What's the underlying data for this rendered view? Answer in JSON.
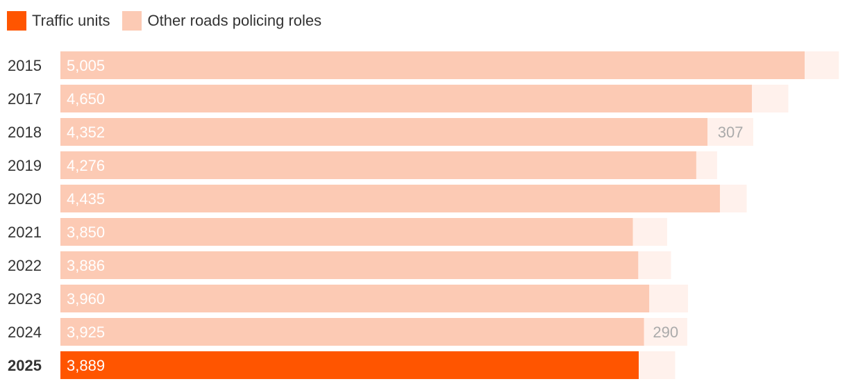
{
  "colors": {
    "traffic": "#FF5500",
    "traffic_light": "#FCCAB4",
    "other": "#FFF1EC",
    "year_text": "#333333",
    "value_text_inside": "#ffffff",
    "value_text_outside": "#aaaaaa"
  },
  "legend": {
    "traffic_label": "Traffic units",
    "other_label": "Other roads policing roles"
  },
  "chart_data": {
    "type": "bar",
    "orientation": "horizontal",
    "stacked": true,
    "categories": [
      "2015",
      "2017",
      "2018",
      "2019",
      "2020",
      "2021",
      "2022",
      "2023",
      "2024",
      "2025"
    ],
    "highlight_category": "2025",
    "series": [
      {
        "name": "Traffic units",
        "values": [
          5005,
          4650,
          4352,
          4276,
          4435,
          3850,
          3886,
          3960,
          3925,
          3889
        ],
        "labels": [
          "5,005",
          "4,650",
          "4,352",
          "4,276",
          "4,435",
          "3,850",
          "3,886",
          "3,960",
          "3,925",
          "3,889"
        ]
      },
      {
        "name": "Other roads policing roles",
        "values": [
          230,
          245,
          307,
          140,
          180,
          230,
          220,
          260,
          290,
          245
        ],
        "labels": [
          "",
          "",
          "307",
          "",
          "",
          "",
          "",
          "",
          "290",
          ""
        ]
      }
    ]
  }
}
